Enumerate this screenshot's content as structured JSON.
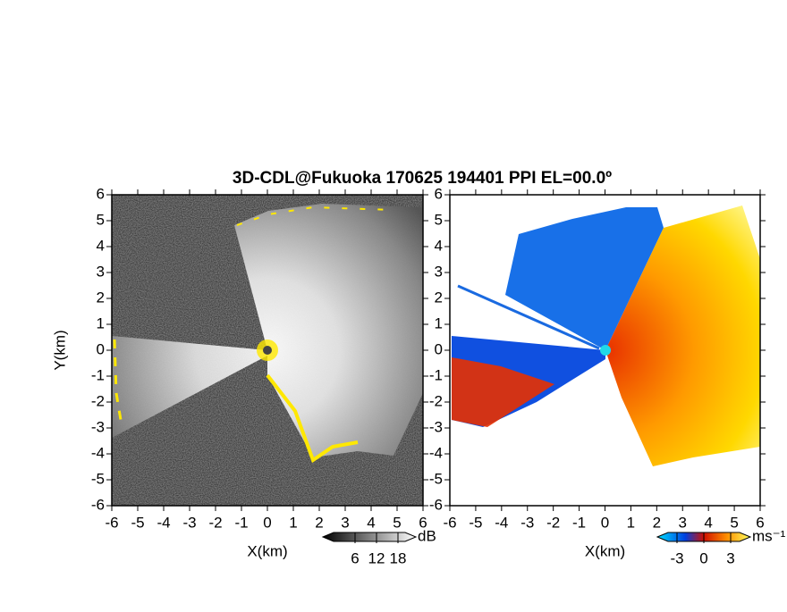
{
  "chart_data": [
    {
      "type": "image",
      "title": "3D-CDL@Fukuoka 170625 194401 PPI EL=00.0º",
      "xlabel": "X(km)",
      "ylabel": "Y(km)",
      "xlim": [
        -6,
        6
      ],
      "ylim": [
        -6,
        6
      ],
      "xticks": [
        -6,
        -5,
        -4,
        -3,
        -2,
        -1,
        0,
        1,
        2,
        3,
        4,
        5,
        6
      ],
      "yticks": [
        -6,
        -5,
        -4,
        -3,
        -2,
        -1,
        0,
        1,
        2,
        3,
        4,
        5,
        6
      ],
      "colorbar": {
        "label": "dB",
        "lim": [
          0,
          20
        ],
        "ticks": [
          6,
          12,
          18
        ]
      }
    },
    {
      "type": "image",
      "xlabel": "X(km)",
      "xlim": [
        -6,
        6
      ],
      "ylim": [
        -6,
        6
      ],
      "xticks": [
        -6,
        -5,
        -4,
        -3,
        -2,
        -1,
        0,
        1,
        2,
        3,
        4,
        5,
        6
      ],
      "yticks": [
        -6,
        -5,
        -4,
        -3,
        -2,
        -1,
        0,
        1,
        2,
        3,
        4,
        5,
        6
      ],
      "colorbar": {
        "label": "ms⁻¹",
        "lim": [
          -4,
          4
        ],
        "ticks": [
          -3,
          0,
          3
        ]
      }
    }
  ]
}
